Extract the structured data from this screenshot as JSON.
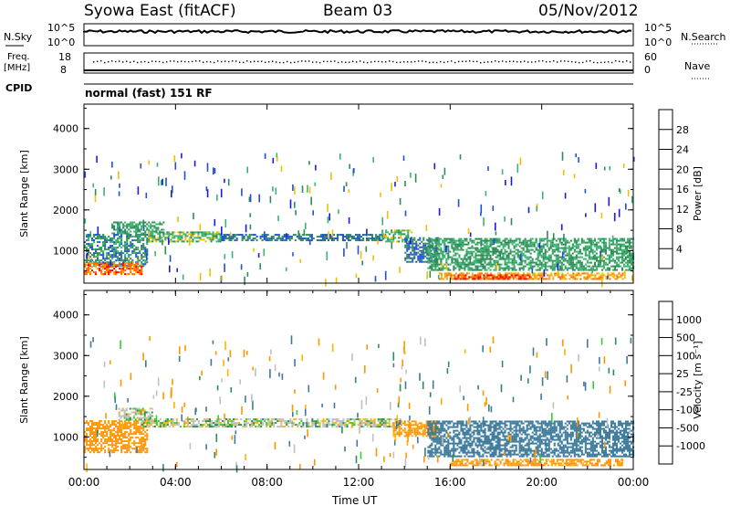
{
  "header": {
    "station": "Syowa East (fitACF)",
    "beam": "Beam 03",
    "date": "05/Nov/2012"
  },
  "side_labels": {
    "nsky": "N.Sky",
    "nsearch": "N.Search",
    "freq_line1": "Freq.",
    "freq_line2": "[MHz]",
    "nave": "Nave",
    "cpid": "CPID"
  },
  "panel_ticks": {
    "noise_top_left": "10^5",
    "noise_bottom_left": "10^0",
    "noise_top_right": "10^5",
    "noise_bottom_right": "10^0",
    "freq_top_left": "18",
    "freq_bottom_left": "8",
    "nave_top_right": "60",
    "nave_bottom_right": "0"
  },
  "cpid_text": "normal (fast) 151 RF",
  "colors": {
    "power": [
      "#1a1ae6",
      "#1e4fd8",
      "#2e8b57",
      "#3cb371",
      "#f0c000",
      "#f7a000",
      "#ff6a00",
      "#ff0000"
    ],
    "velocity": [
      "#ee0000",
      "#ff6400",
      "#ff9600",
      "#ffb400",
      "#c0c0c0",
      "#c0c0c0",
      "#32cd32",
      "#2e8b57",
      "#3c7a9a",
      "#2323a0"
    ]
  },
  "chart_data": [
    {
      "type": "heatmap",
      "name": "power",
      "ylabel": "Slant Range [km]",
      "xlabel": "",
      "yticks": [
        "1000",
        "2000",
        "3000",
        "4000"
      ],
      "ylim": [
        200,
        4600
      ],
      "colorbar_label": "Power [dB]",
      "colorbar_ticks": [
        "4",
        "8",
        "12",
        "16",
        "20",
        "24",
        "28"
      ],
      "colorbar_range": [
        0,
        32
      ],
      "bands": [
        {
          "t0": 0.0,
          "t1": 2.8,
          "r0": 600,
          "r1": 1400,
          "v": 10
        },
        {
          "t0": 1.2,
          "t1": 3.5,
          "r0": 1400,
          "r1": 1700,
          "v": 12
        },
        {
          "t0": 2.8,
          "t1": 6.0,
          "r0": 1200,
          "r1": 1450,
          "v": 14
        },
        {
          "t0": 6.0,
          "t1": 13.2,
          "r0": 1230,
          "r1": 1400,
          "v": 8
        },
        {
          "t0": 13.0,
          "t1": 14.3,
          "r0": 1200,
          "r1": 1500,
          "v": 14
        },
        {
          "t0": 14.0,
          "t1": 15.5,
          "r0": 700,
          "r1": 1300,
          "v": 8
        },
        {
          "t0": 15.0,
          "t1": 24.0,
          "r0": 500,
          "r1": 1300,
          "v": 12
        },
        {
          "t0": 15.5,
          "t1": 23.5,
          "r0": 280,
          "r1": 450,
          "v": 22
        },
        {
          "t0": 16.0,
          "t1": 19.5,
          "r0": 280,
          "r1": 380,
          "v": 28
        },
        {
          "t0": 0.0,
          "t1": 2.5,
          "r0": 400,
          "r1": 700,
          "v": 26
        }
      ]
    },
    {
      "type": "heatmap",
      "name": "velocity",
      "ylabel": "Slant Range [km]",
      "xlabel": "Time UT",
      "xticks": [
        "00:00",
        "04:00",
        "08:00",
        "12:00",
        "16:00",
        "20:00",
        "00:00"
      ],
      "yticks": [
        "1000",
        "2000",
        "3000",
        "4000"
      ],
      "ylim": [
        200,
        4600
      ],
      "xlim": [
        0,
        24
      ],
      "colorbar_label": "Velocity [m s⁻¹]",
      "colorbar_ticks": [
        "1000",
        "500",
        "100",
        "25",
        "-25",
        "-100",
        "-500",
        "-1000"
      ],
      "bands": [
        {
          "t0": 0.0,
          "t1": 2.8,
          "r0": 600,
          "r1": 1400,
          "v": -200
        },
        {
          "t0": 2.5,
          "t1": 13.8,
          "r0": 1230,
          "r1": 1420,
          "v": 0
        },
        {
          "t0": 1.5,
          "t1": 3.0,
          "r0": 1400,
          "r1": 1700,
          "v": 0
        },
        {
          "t0": 13.5,
          "t1": 15.5,
          "r0": 1000,
          "r1": 1400,
          "v": -150
        },
        {
          "t0": 15.0,
          "t1": 24.0,
          "r0": 500,
          "r1": 1400,
          "v": 300
        },
        {
          "t0": 16.0,
          "t1": 23.5,
          "r0": 280,
          "r1": 450,
          "v": -150
        }
      ]
    }
  ]
}
